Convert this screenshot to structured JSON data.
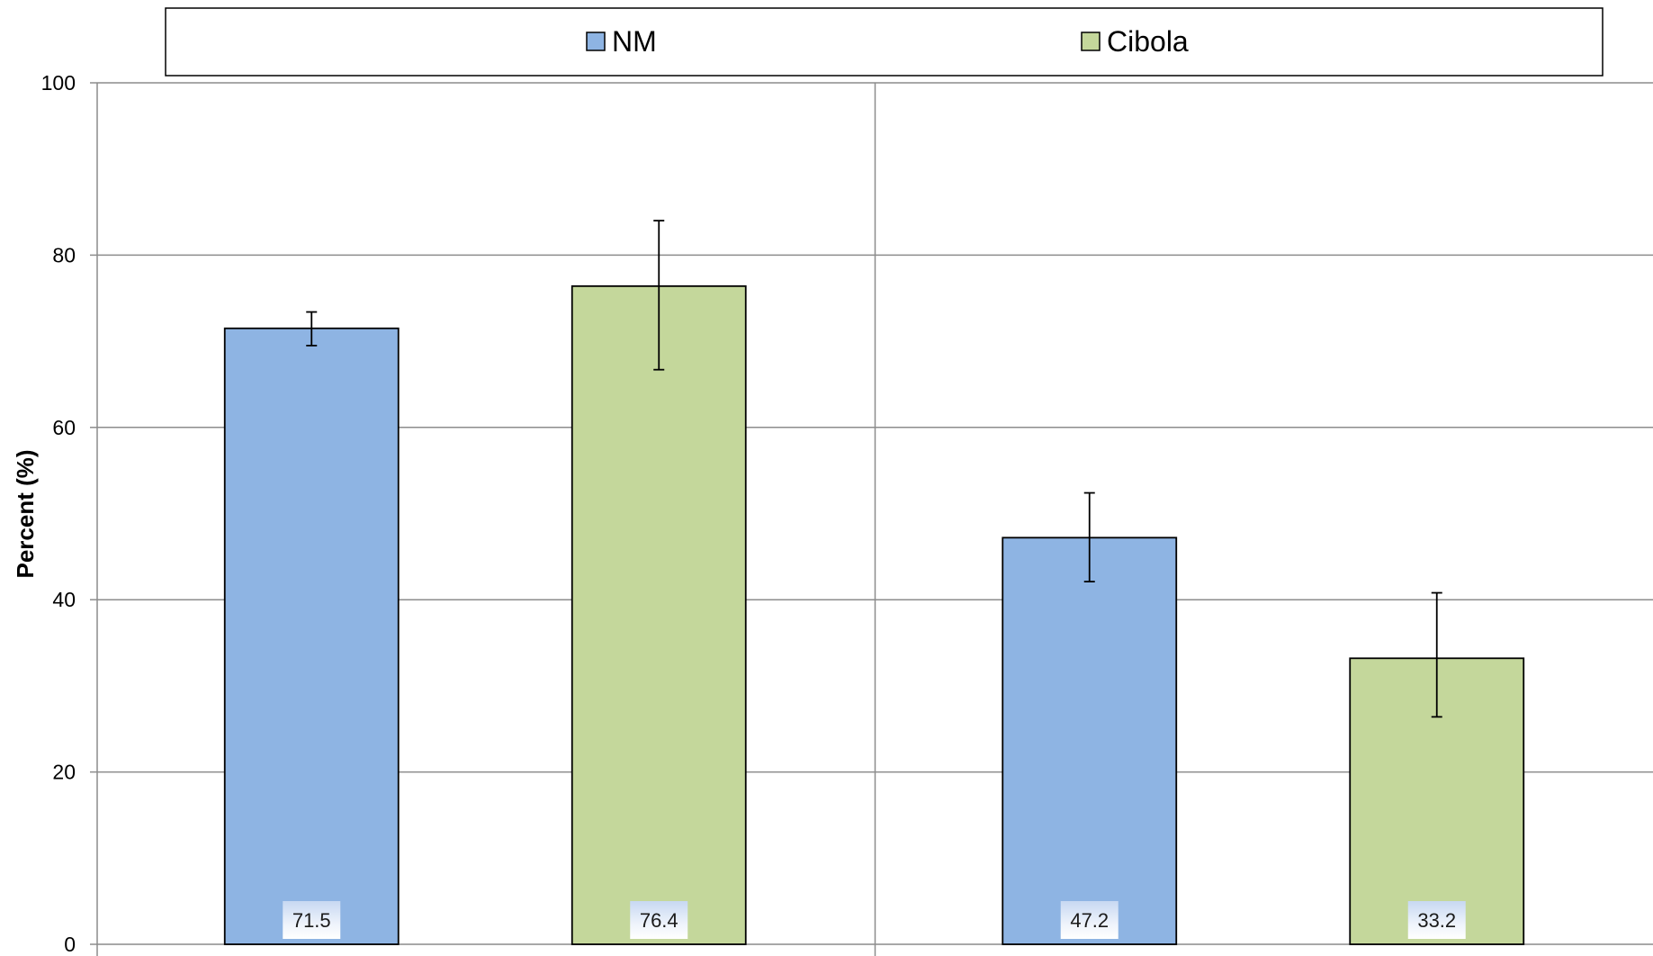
{
  "chart_data": {
    "type": "bar",
    "title": "",
    "xlabel": "",
    "ylabel": "Percent (%)",
    "ylim": [
      0,
      100
    ],
    "yticks": [
      0,
      20,
      40,
      60,
      80,
      100
    ],
    "grid": true,
    "legend_position": "top",
    "categories": [
      "",
      ""
    ],
    "series": [
      {
        "name": "NM",
        "color": "#8EB4E3",
        "values": [
          71.5,
          47.2
        ],
        "error_low": [
          69.5,
          42.1
        ],
        "error_high": [
          73.4,
          52.4
        ],
        "data_labels": [
          "71.5",
          "47.2"
        ]
      },
      {
        "name": "Cibola",
        "color": "#C4D79B",
        "values": [
          76.4,
          33.2
        ],
        "error_low": [
          66.7,
          26.4
        ],
        "error_high": [
          84.0,
          40.8
        ],
        "data_labels": [
          "76.4",
          "33.2"
        ]
      }
    ]
  }
}
